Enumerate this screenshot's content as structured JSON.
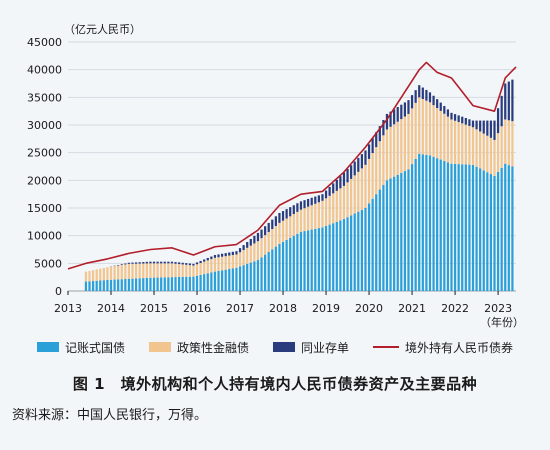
{
  "chart_data": {
    "type": "bar+line",
    "y_unit_label": "（亿元人民币）",
    "x_unit_label": "（年份）",
    "ylim": [
      0,
      45000
    ],
    "yticks": [
      0,
      5000,
      10000,
      15000,
      20000,
      25000,
      30000,
      35000,
      40000,
      45000
    ],
    "xticks": [
      "2013",
      "2014",
      "2015",
      "2016",
      "2017",
      "2018",
      "2019",
      "2020",
      "2021",
      "2022",
      "2023"
    ],
    "x_range": [
      "2013-01",
      "2023-06"
    ],
    "bar_start": "2013-06",
    "series": [
      {
        "name": "记账式国债",
        "color": "#2a9fd8",
        "kind": "stacked-bar"
      },
      {
        "name": "政策性金融债",
        "color": "#f2c48e",
        "kind": "stacked-bar"
      },
      {
        "name": "同业存单",
        "color": "#2a3c7e",
        "kind": "stacked-bar"
      },
      {
        "name": "境外持有人民币债券",
        "color": "#b21e2b",
        "kind": "line"
      }
    ],
    "data": [
      {
        "date": "2013-06",
        "gov": 1700,
        "policy": 1800,
        "ncd": 0
      },
      {
        "date": "2013-12",
        "gov": 2000,
        "policy": 2300,
        "ncd": 0
      },
      {
        "date": "2014-06",
        "gov": 2200,
        "policy": 2700,
        "ncd": 200
      },
      {
        "date": "2014-12",
        "gov": 2400,
        "policy": 2600,
        "ncd": 300
      },
      {
        "date": "2015-06",
        "gov": 2500,
        "policy": 2500,
        "ncd": 300
      },
      {
        "date": "2015-12",
        "gov": 2600,
        "policy": 2000,
        "ncd": 300
      },
      {
        "date": "2016-06",
        "gov": 3500,
        "policy": 2500,
        "ncd": 500
      },
      {
        "date": "2016-12",
        "gov": 4200,
        "policy": 2400,
        "ncd": 600
      },
      {
        "date": "2017-06",
        "gov": 5600,
        "policy": 3400,
        "ncd": 1500
      },
      {
        "date": "2017-12",
        "gov": 8500,
        "policy": 3800,
        "ncd": 1800
      },
      {
        "date": "2018-06",
        "gov": 10700,
        "policy": 4000,
        "ncd": 1500
      },
      {
        "date": "2018-12",
        "gov": 11500,
        "policy": 4800,
        "ncd": 1200
      },
      {
        "date": "2019-06",
        "gov": 13000,
        "policy": 6000,
        "ncd": 2400
      },
      {
        "date": "2019-12",
        "gov": 15000,
        "policy": 7800,
        "ncd": 2600
      },
      {
        "date": "2020-06",
        "gov": 20000,
        "policy": 9200,
        "ncd": 2800
      },
      {
        "date": "2020-12",
        "gov": 22000,
        "policy": 10000,
        "ncd": 2500
      },
      {
        "date": "2021-03",
        "gov": 24800,
        "policy": 10200,
        "ncd": 2200
      },
      {
        "date": "2021-06",
        "gov": 24500,
        "policy": 9600,
        "ncd": 1800
      },
      {
        "date": "2021-12",
        "gov": 23000,
        "policy": 8000,
        "ncd": 1200
      },
      {
        "date": "2022-06",
        "gov": 22800,
        "policy": 6800,
        "ncd": 1200
      },
      {
        "date": "2022-12",
        "gov": 20800,
        "policy": 6500,
        "ncd": 3500
      },
      {
        "date": "2023-03",
        "gov": 23000,
        "policy": 8000,
        "ncd": 6500
      },
      {
        "date": "2023-05",
        "gov": 22500,
        "policy": 8200,
        "ncd": 7500
      }
    ],
    "line": [
      {
        "date": "2013-01",
        "value": 4000
      },
      {
        "date": "2013-06",
        "value": 5000
      },
      {
        "date": "2013-12",
        "value": 5800
      },
      {
        "date": "2014-06",
        "value": 6800
      },
      {
        "date": "2014-12",
        "value": 7500
      },
      {
        "date": "2015-06",
        "value": 7800
      },
      {
        "date": "2015-12",
        "value": 6500
      },
      {
        "date": "2016-06",
        "value": 8000
      },
      {
        "date": "2016-12",
        "value": 8400
      },
      {
        "date": "2017-06",
        "value": 11000
      },
      {
        "date": "2017-12",
        "value": 15500
      },
      {
        "date": "2018-06",
        "value": 17500
      },
      {
        "date": "2018-12",
        "value": 18000
      },
      {
        "date": "2019-06",
        "value": 21500
      },
      {
        "date": "2019-12",
        "value": 26000
      },
      {
        "date": "2020-06",
        "value": 31000
      },
      {
        "date": "2020-12",
        "value": 37000
      },
      {
        "date": "2021-03",
        "value": 40000
      },
      {
        "date": "2021-05",
        "value": 41300
      },
      {
        "date": "2021-08",
        "value": 39500
      },
      {
        "date": "2021-12",
        "value": 38500
      },
      {
        "date": "2022-03",
        "value": 36000
      },
      {
        "date": "2022-06",
        "value": 33500
      },
      {
        "date": "2022-12",
        "value": 32500
      },
      {
        "date": "2023-03",
        "value": 38500
      },
      {
        "date": "2023-06",
        "value": 40500
      }
    ]
  },
  "legend": {
    "items": [
      {
        "label": "记账式国债",
        "color": "#2a9fd8",
        "kind": "box"
      },
      {
        "label": "政策性金融债",
        "color": "#f2c48e",
        "kind": "box"
      },
      {
        "label": "同业存单",
        "color": "#2a3c7e",
        "kind": "box"
      },
      {
        "label": "境外持有人民币债券",
        "color": "#b21e2b",
        "kind": "line"
      }
    ]
  },
  "caption": "图 1　境外机构和个人持有境内人民币债券资产及主要品种",
  "source": "资料来源：中国人民银行，万得。"
}
